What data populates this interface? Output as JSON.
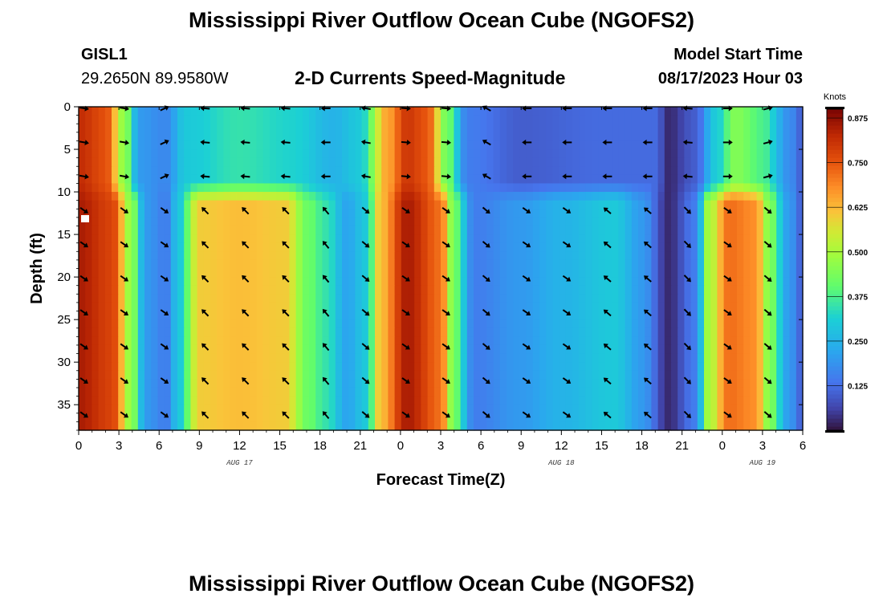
{
  "page_title": "Mississippi River Outflow Ocean Cube (NGOFS2)",
  "repeated_title": "Mississippi River Outflow Ocean Cube (NGOFS2)",
  "station": {
    "id": "GISL1",
    "coords": "29.2650N  89.9580W"
  },
  "model": {
    "start_label": "Model Start Time",
    "start_value": "08/17/2023 Hour 03"
  },
  "chart_data": {
    "type": "heatmap",
    "title": "2-D Currents Speed-Magnitude",
    "xlabel": "Forecast Time(Z)",
    "ylabel": "Depth (ft)",
    "x_range_hours": [
      0,
      54
    ],
    "y_range_ft": [
      0,
      38
    ],
    "y_inverted": true,
    "x_tick_hours": [
      0,
      3,
      6,
      9,
      12,
      15,
      18,
      21,
      24,
      27,
      30,
      33,
      36,
      39,
      42,
      45,
      48,
      51,
      54
    ],
    "x_tick_labels": [
      "0",
      "3",
      "6",
      "9",
      "12",
      "15",
      "18",
      "21",
      "0",
      "3",
      "6",
      "9",
      "12",
      "15",
      "18",
      "21",
      "0",
      "3",
      "6"
    ],
    "y_ticks": [
      0,
      5,
      10,
      15,
      20,
      25,
      30,
      35
    ],
    "y_tick_labels": [
      "0",
      "5",
      "10",
      "15",
      "20",
      "25",
      "30",
      "35"
    ],
    "date_labels": [
      {
        "text": "AUG 17",
        "hour": 12
      },
      {
        "text": "AUG 18",
        "hour": 36
      },
      {
        "text": "AUG 19",
        "hour": 51
      }
    ],
    "colorbar": {
      "unit": "Knots",
      "range": [
        0.0,
        0.9
      ],
      "ticks": [
        0.125,
        0.25,
        0.375,
        0.5,
        0.625,
        0.75,
        0.875
      ],
      "tick_labels": [
        "0.125",
        "0.250",
        "0.375",
        "0.500",
        "0.625",
        "0.750",
        "0.875"
      ],
      "colormap": "turbo"
    },
    "speed_model": {
      "surface_layer_max_depth_ft": 10,
      "surface_speed_knots": [
        [
          0,
          0.82
        ],
        [
          2,
          0.76
        ],
        [
          3.5,
          0.45
        ],
        [
          4.5,
          0.2
        ],
        [
          6.5,
          0.17
        ],
        [
          8,
          0.3
        ],
        [
          12,
          0.35
        ],
        [
          16,
          0.32
        ],
        [
          19,
          0.25
        ],
        [
          21,
          0.3
        ],
        [
          23,
          0.65
        ],
        [
          24.5,
          0.8
        ],
        [
          26,
          0.75
        ],
        [
          27.5,
          0.42
        ],
        [
          29,
          0.15
        ],
        [
          33,
          0.1
        ],
        [
          39,
          0.12
        ],
        [
          43,
          0.12
        ],
        [
          44,
          0.03
        ],
        [
          46,
          0.1
        ],
        [
          47.5,
          0.3
        ],
        [
          49,
          0.45
        ],
        [
          51,
          0.38
        ],
        [
          53,
          0.18
        ],
        [
          54,
          0.1
        ]
      ],
      "deep_speed_knots": [
        [
          0,
          0.85
        ],
        [
          2.5,
          0.78
        ],
        [
          4,
          0.45
        ],
        [
          5,
          0.2
        ],
        [
          6.5,
          0.15
        ],
        [
          7.5,
          0.3
        ],
        [
          9,
          0.6
        ],
        [
          12,
          0.62
        ],
        [
          15.5,
          0.6
        ],
        [
          17,
          0.42
        ],
        [
          18.5,
          0.35
        ],
        [
          20,
          0.22
        ],
        [
          21.5,
          0.3
        ],
        [
          22.5,
          0.62
        ],
        [
          24.5,
          0.85
        ],
        [
          27,
          0.72
        ],
        [
          28,
          0.42
        ],
        [
          29.5,
          0.15
        ],
        [
          33,
          0.2
        ],
        [
          36,
          0.25
        ],
        [
          40,
          0.3
        ],
        [
          42,
          0.2
        ],
        [
          44,
          0.03
        ],
        [
          46,
          0.15
        ],
        [
          47,
          0.5
        ],
        [
          48.5,
          0.72
        ],
        [
          50.5,
          0.68
        ],
        [
          51.5,
          0.45
        ],
        [
          53,
          0.2
        ],
        [
          54,
          0.1
        ]
      ]
    },
    "vector_grid": {
      "hours": [
        0,
        3,
        6,
        9,
        12,
        15,
        18,
        21,
        24,
        27,
        30,
        33,
        36,
        39,
        42,
        45,
        48,
        51
      ],
      "depths_ft": [
        0,
        4,
        8,
        12,
        16,
        20,
        24,
        28,
        32,
        36
      ]
    }
  }
}
